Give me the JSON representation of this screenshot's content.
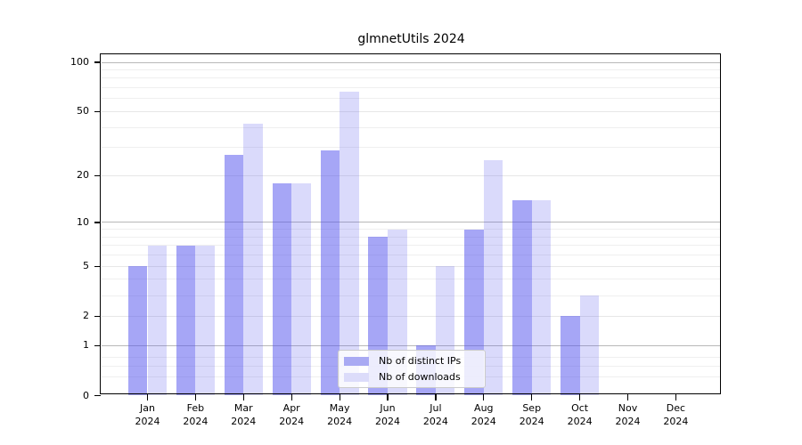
{
  "chart_data": {
    "type": "bar",
    "title": "glmnetUtils 2024",
    "categories": [
      "Jan",
      "Feb",
      "Mar",
      "Apr",
      "May",
      "Jun",
      "Jul",
      "Aug",
      "Sep",
      "Oct",
      "Nov",
      "Dec"
    ],
    "year_label": "2024",
    "series": [
      {
        "name": "Nb of distinct IPs",
        "color": "rgba(85,85,238,0.52)",
        "legend_color": "#a9aaf3",
        "values": [
          5,
          7,
          27,
          18,
          29,
          8,
          1,
          9,
          14,
          2,
          0,
          0
        ]
      },
      {
        "name": "Nb of downloads",
        "color": "rgba(85,85,238,0.22)",
        "legend_color": "#dcdcfa",
        "values": [
          7,
          7,
          42,
          18,
          66,
          9,
          5,
          25,
          14,
          3,
          0,
          0
        ]
      }
    ],
    "y_axis": {
      "scale": "log1p",
      "tick_values": [
        0,
        1,
        2,
        5,
        10,
        20,
        50,
        100
      ],
      "major_grid": [
        1,
        10,
        100
      ],
      "light_grid": [
        2,
        5,
        20,
        50
      ],
      "minor_grid": [
        0.3,
        0.5,
        0.7,
        3,
        4,
        6,
        7,
        8,
        9,
        30,
        40,
        60,
        70,
        80,
        90
      ],
      "range": [
        0,
        100
      ]
    },
    "legend_position": "lower center",
    "grid": true,
    "colors": {
      "background": "#ffffff",
      "axis": "#000000",
      "major_grid_line": "#b8b8b8",
      "light_grid_line": "#e7e7e7",
      "minor_grid_line": "#efefef",
      "text": "#000000"
    }
  }
}
